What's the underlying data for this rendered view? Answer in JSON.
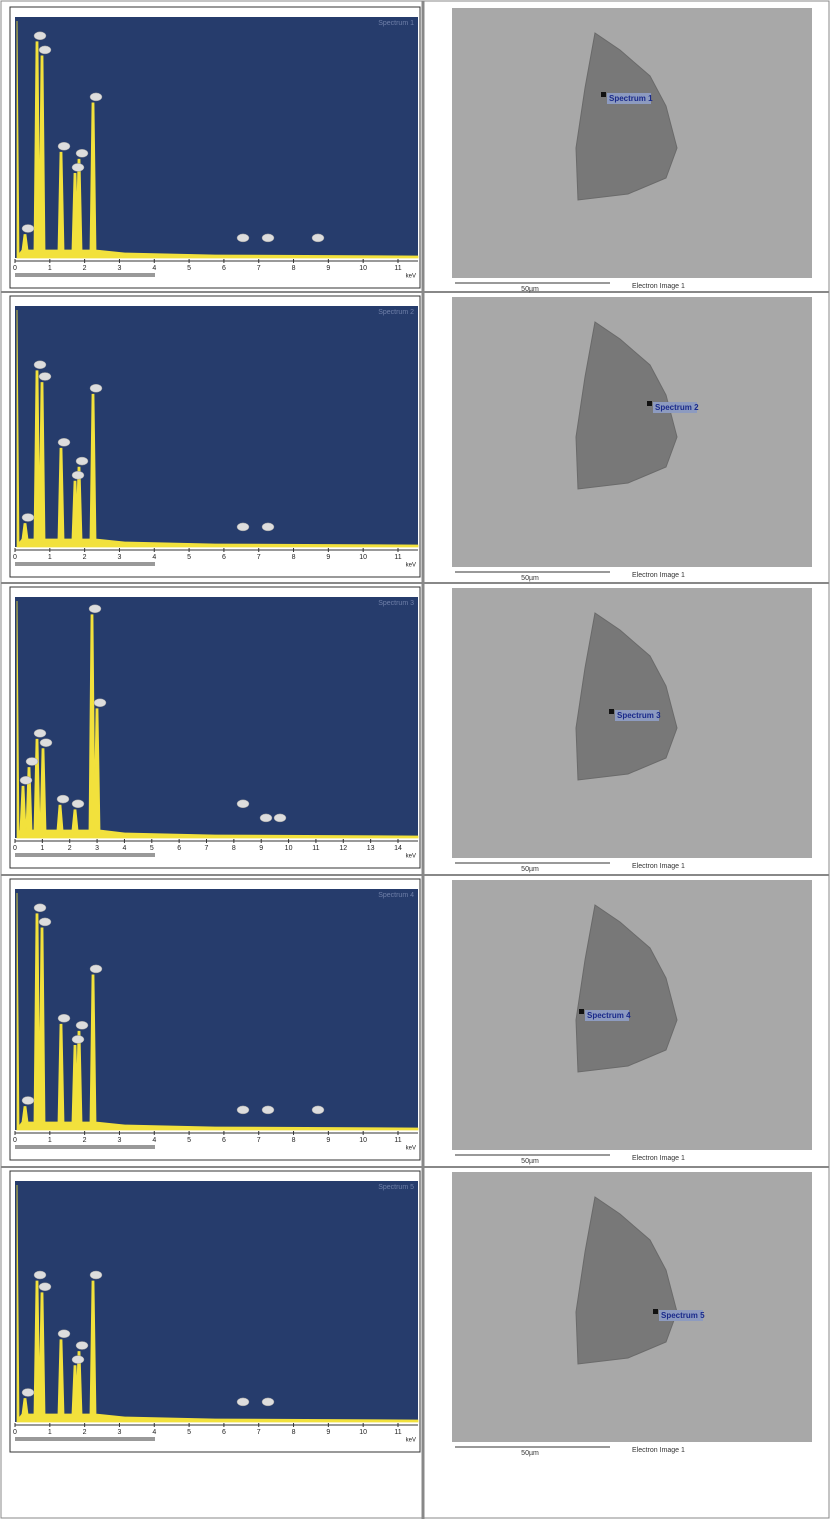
{
  "rows": [
    {
      "spectrum": {
        "title": "Spectrum 1",
        "ticks": [
          "0",
          "1",
          "2",
          "3",
          "4",
          "5",
          "6",
          "7",
          "8",
          "9",
          "10",
          "11"
        ],
        "unit": "keV"
      },
      "image": {
        "marker_label": "Spectrum 1",
        "scale_bar": "50µm",
        "caption": "Electron Image 1"
      }
    },
    {
      "spectrum": {
        "title": "Spectrum 2",
        "ticks": [
          "0",
          "1",
          "2",
          "3",
          "4",
          "5",
          "6",
          "7",
          "8",
          "9",
          "10",
          "11"
        ],
        "unit": "keV"
      },
      "image": {
        "marker_label": "Spectrum 2",
        "scale_bar": "50µm",
        "caption": "Electron Image 1"
      }
    },
    {
      "spectrum": {
        "title": "Spectrum 3",
        "ticks": [
          "0",
          "1",
          "2",
          "3",
          "4",
          "5",
          "6",
          "7",
          "8",
          "9",
          "10",
          "11",
          "12",
          "13",
          "14"
        ],
        "unit": "keV"
      },
      "image": {
        "marker_label": "Spectrum 3",
        "scale_bar": "50µm",
        "caption": "Electron Image 1"
      }
    },
    {
      "spectrum": {
        "title": "Spectrum 4",
        "ticks": [
          "0",
          "1",
          "2",
          "3",
          "4",
          "5",
          "6",
          "7",
          "8",
          "9",
          "10",
          "11"
        ],
        "unit": "keV"
      },
      "image": {
        "marker_label": "Spectrum 4",
        "scale_bar": "50µm",
        "caption": "Electron Image 1"
      }
    },
    {
      "spectrum": {
        "title": "Spectrum 5",
        "ticks": [
          "0",
          "1",
          "2",
          "3",
          "4",
          "5",
          "6",
          "7",
          "8",
          "9",
          "10",
          "11"
        ],
        "unit": "keV"
      },
      "image": {
        "marker_label": "Spectrum 5",
        "scale_bar": "50µm",
        "caption": "Electron Image 1"
      }
    }
  ]
}
